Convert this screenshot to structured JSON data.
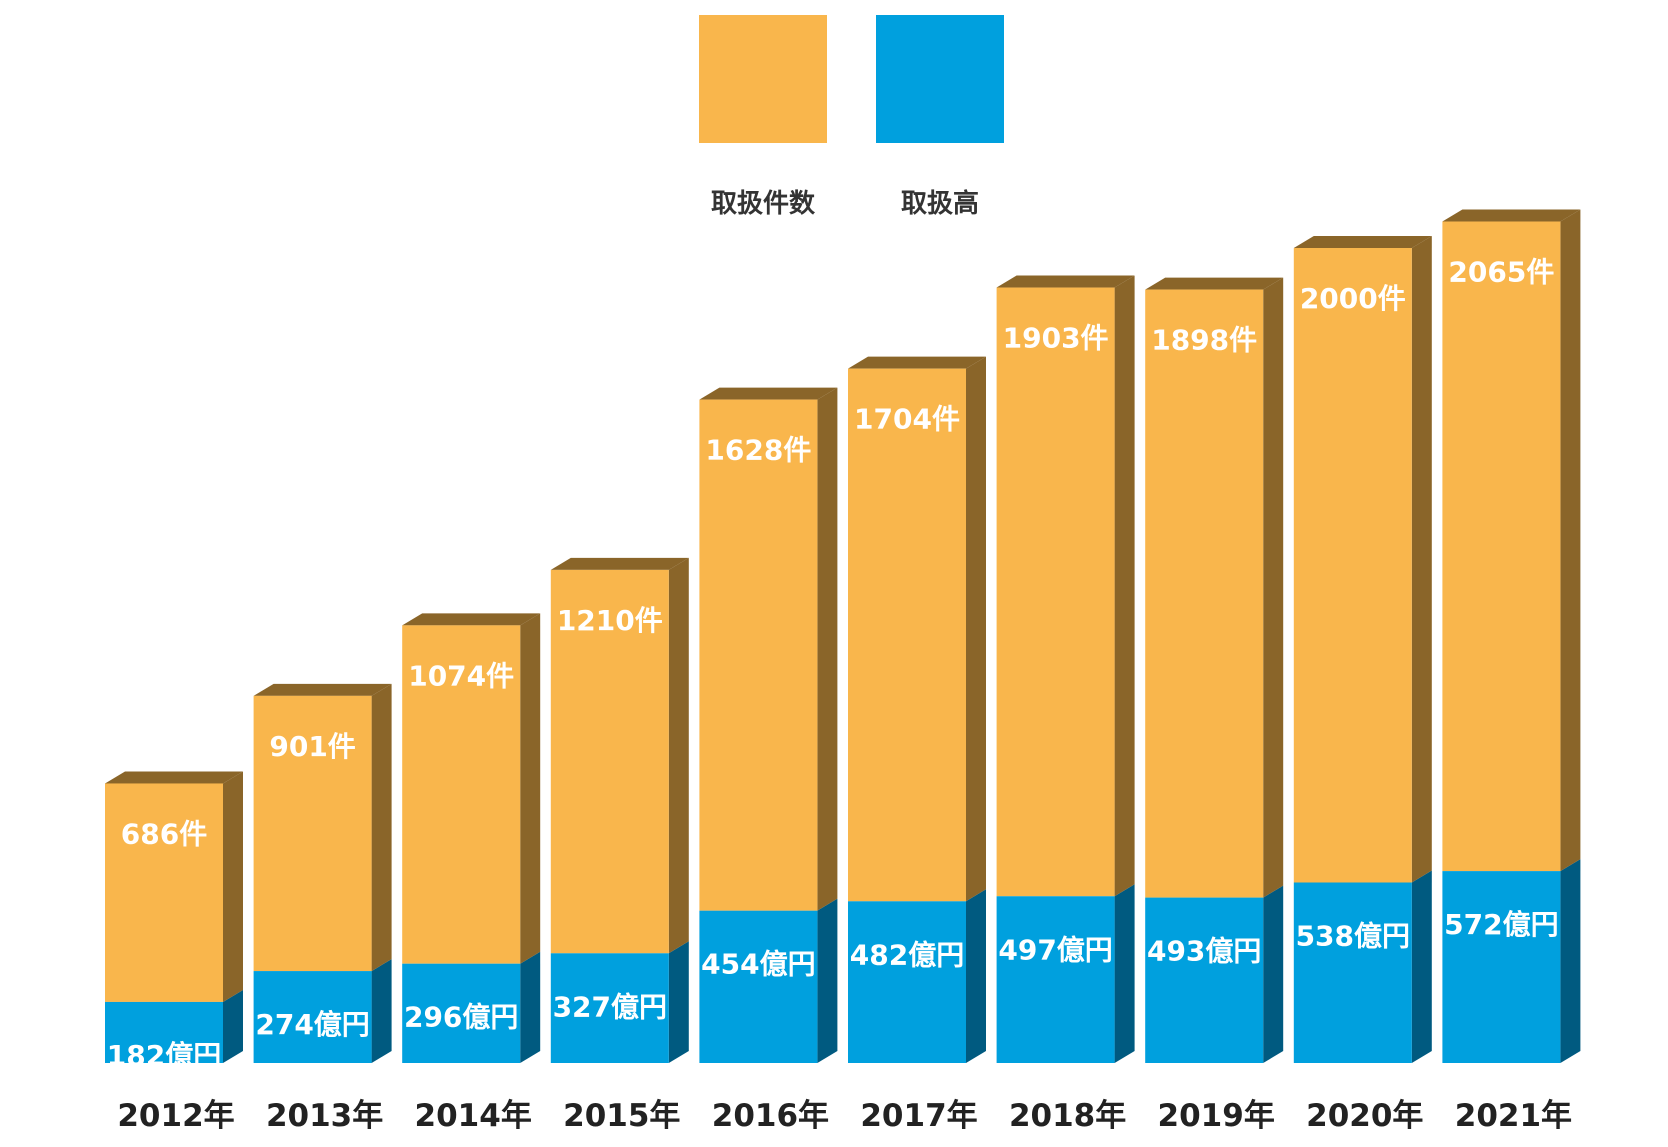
{
  "chart_data": {
    "type": "bar",
    "stacked": true,
    "categories": [
      "2012年",
      "2013年",
      "2014年",
      "2015年",
      "2016年",
      "2017年",
      "2018年",
      "2019年",
      "2020年",
      "2021年"
    ],
    "series": [
      {
        "name": "取扱高",
        "color": "#00A0DE",
        "side_color": "#005A80",
        "values": [
          182,
          274,
          296,
          327,
          454,
          482,
          497,
          493,
          538,
          572
        ],
        "labels": [
          "182億円",
          "274億円",
          "296億円",
          "327億円",
          "454億円",
          "482億円",
          "497億円",
          "493億円",
          "538億円",
          "572億円"
        ]
      },
      {
        "name": "取扱件数",
        "color": "#F9B64C",
        "side_color": "#8A6529",
        "values": [
          686,
          901,
          1074,
          1210,
          1628,
          1704,
          1903,
          1898,
          2000,
          2065
        ],
        "labels": [
          "686件",
          "901件",
          "1074件",
          "1210件",
          "1628件",
          "1704件",
          "1903件",
          "1898件",
          "2000件",
          "2065件"
        ]
      }
    ],
    "legend": {
      "placement": "top-center",
      "items": [
        {
          "label": "取扱件数",
          "color": "#F9B64C"
        },
        {
          "label": "取扱高",
          "color": "#00A0DE"
        }
      ]
    },
    "grid": false
  }
}
